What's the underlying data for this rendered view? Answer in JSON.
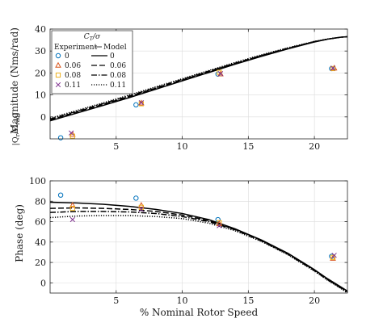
{
  "figure": {
    "xlabel": "% Nominal Rotor Speed",
    "colors": {
      "c0": "#0072BD",
      "c006": "#D95319",
      "c008": "#EDB120",
      "c011": "#7E2F8E",
      "model": "#000000"
    },
    "legend": {
      "title": "C_T/σ",
      "header_experiment": "Experiment",
      "header_model": "Model",
      "rows": [
        {
          "exp_label": "0",
          "model_label": "0",
          "marker": "circle",
          "line": "solid"
        },
        {
          "exp_label": "0.06",
          "model_label": "0.06",
          "marker": "triangle",
          "line": "dashed"
        },
        {
          "exp_label": "0.08",
          "model_label": "0.08",
          "marker": "square",
          "line": "dashdot"
        },
        {
          "exp_label": "0.11",
          "model_label": "0.11",
          "marker": "x",
          "line": "dotted"
        }
      ]
    }
  },
  "chart_data": [
    {
      "type": "line",
      "panel": "top",
      "ylabel": "Magnitude (Nms/rad)",
      "ylabel_prefix": "|Q_r/Ω_rad|",
      "xlim": [
        0,
        22.5
      ],
      "ylim": [
        -10,
        40
      ],
      "xticks": [
        5,
        10,
        15,
        20
      ],
      "yticks": [
        0,
        10,
        20,
        30,
        40
      ],
      "grid": true,
      "legend_position": "top-left",
      "model_series": [
        {
          "name": "0",
          "style": "solid",
          "x": [
            0,
            2,
            4,
            6,
            8,
            10,
            12,
            14,
            16,
            18,
            20,
            21,
            22,
            22.5
          ],
          "y": [
            -1.8,
            1.7,
            5.2,
            8.8,
            12.6,
            16.4,
            20.2,
            24.0,
            27.6,
            31.0,
            34.1,
            35.4,
            36.3,
            36.5
          ]
        },
        {
          "name": "0.06",
          "style": "dashed",
          "x": [
            0,
            2,
            4,
            6,
            8,
            10,
            12,
            14,
            16,
            18,
            20,
            21,
            22,
            22.5
          ],
          "y": [
            -1.3,
            2.2,
            5.7,
            9.3,
            13.0,
            16.8,
            20.6,
            24.3,
            27.9,
            31.2,
            34.2,
            35.4,
            36.3,
            36.5
          ]
        },
        {
          "name": "0.08",
          "style": "dashdot",
          "x": [
            0,
            2,
            4,
            6,
            8,
            10,
            12,
            14,
            16,
            18,
            20,
            21,
            22,
            22.5
          ],
          "y": [
            -1.0,
            2.5,
            6.0,
            9.6,
            13.3,
            17.1,
            20.8,
            24.5,
            28.0,
            31.3,
            34.3,
            35.4,
            36.3,
            36.5
          ]
        },
        {
          "name": "0.11",
          "style": "dotted",
          "x": [
            0,
            2,
            4,
            6,
            8,
            10,
            12,
            14,
            16,
            18,
            20,
            21,
            22,
            22.5
          ],
          "y": [
            -0.6,
            2.9,
            6.4,
            10.0,
            13.7,
            17.4,
            21.1,
            24.8,
            28.3,
            31.5,
            34.4,
            35.5,
            36.3,
            36.5
          ]
        }
      ],
      "experiment_series": [
        {
          "name": "0",
          "marker": "circle",
          "color": "#0072BD",
          "x": [
            0.8,
            6.5,
            12.7,
            21.3
          ],
          "y": [
            -9.5,
            5.5,
            19.5,
            22.0
          ]
        },
        {
          "name": "0.06",
          "marker": "triangle",
          "color": "#D95319",
          "x": [
            1.7,
            6.9,
            12.9,
            21.5
          ],
          "y": [
            -8.0,
            6.3,
            19.5,
            22.2
          ]
        },
        {
          "name": "0.08",
          "marker": "square",
          "color": "#EDB120",
          "x": [
            1.7,
            6.9,
            12.8,
            21.4
          ],
          "y": [
            -8.8,
            6.0,
            20.3,
            22.0
          ]
        },
        {
          "name": "0.11",
          "marker": "x",
          "color": "#7E2F8E",
          "x": [
            1.6,
            6.9,
            12.9,
            21.4
          ],
          "y": [
            -7.3,
            6.5,
            19.7,
            22.2
          ]
        }
      ]
    },
    {
      "type": "line",
      "panel": "bottom",
      "ylabel": "Phase (deg)",
      "xlabel": "% Nominal Rotor Speed",
      "xlim": [
        0,
        22.5
      ],
      "ylim": [
        -10,
        100
      ],
      "xticks": [
        5,
        10,
        15,
        20
      ],
      "yticks": [
        0,
        20,
        40,
        60,
        80,
        100
      ],
      "grid": true,
      "model_series": [
        {
          "name": "0",
          "style": "solid",
          "x": [
            0,
            2,
            4,
            6,
            8,
            10,
            12,
            14,
            16,
            18,
            20,
            21,
            22,
            22.5
          ],
          "y": [
            79,
            78.3,
            77,
            75,
            72,
            68,
            62,
            53,
            42,
            29,
            13,
            4,
            -4,
            -8
          ]
        },
        {
          "name": "0.06",
          "style": "dashed",
          "x": [
            0,
            2,
            4,
            6,
            8,
            10,
            12,
            14,
            16,
            18,
            20,
            21,
            22,
            22.5
          ],
          "y": [
            73,
            73.5,
            73,
            72,
            70,
            66.5,
            61,
            52.5,
            41.5,
            28.5,
            12.5,
            3.5,
            -4.5,
            -8.5
          ]
        },
        {
          "name": "0.08",
          "style": "dashdot",
          "x": [
            0,
            2,
            4,
            6,
            8,
            10,
            12,
            14,
            16,
            18,
            20,
            21,
            22,
            22.5
          ],
          "y": [
            69,
            70,
            70,
            69.5,
            68,
            65,
            60,
            52,
            41,
            28,
            12,
            3,
            -5,
            -9
          ]
        },
        {
          "name": "0.11",
          "style": "dotted",
          "x": [
            0,
            2,
            4,
            6,
            8,
            10,
            12,
            14,
            16,
            18,
            20,
            21,
            22,
            22.5
          ],
          "y": [
            64,
            65.5,
            66,
            66,
            65,
            63,
            58.5,
            51,
            40.5,
            27.5,
            11.5,
            2.5,
            -5.5,
            -10
          ]
        }
      ],
      "experiment_series": [
        {
          "name": "0",
          "marker": "circle",
          "color": "#0072BD",
          "x": [
            0.8,
            6.5,
            12.7,
            21.3
          ],
          "y": [
            86,
            83,
            62,
            26
          ]
        },
        {
          "name": "0.06",
          "marker": "triangle",
          "color": "#D95319",
          "x": [
            1.7,
            6.9,
            12.8,
            21.4
          ],
          "y": [
            76,
            76,
            58,
            24
          ]
        },
        {
          "name": "0.08",
          "marker": "square",
          "color": "#EDB120",
          "x": [
            1.7,
            6.9,
            12.8,
            21.4
          ],
          "y": [
            73,
            74,
            59,
            25
          ]
        },
        {
          "name": "0.11",
          "marker": "x",
          "color": "#7E2F8E",
          "x": [
            1.7,
            6.9,
            12.8,
            21.5
          ],
          "y": [
            62,
            72,
            56,
            27
          ]
        }
      ]
    }
  ]
}
